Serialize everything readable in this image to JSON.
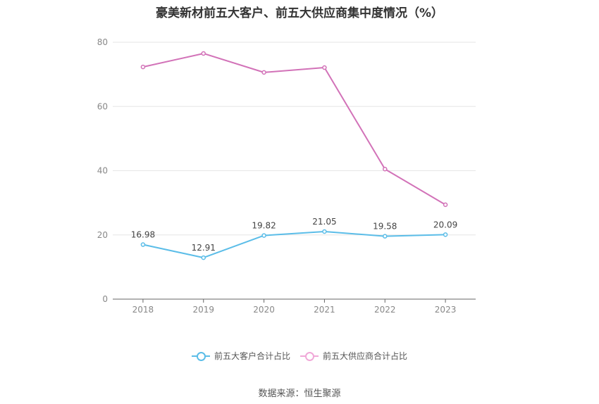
{
  "chart_data": {
    "type": "line",
    "title": "豪美新材前五大客户、前五大供应商集中度情况（%）",
    "categories": [
      "2018",
      "2019",
      "2020",
      "2021",
      "2022",
      "2023"
    ],
    "series": [
      {
        "name": "前五大客户合计占比",
        "values": [
          16.98,
          12.91,
          19.82,
          21.05,
          19.58,
          20.09
        ],
        "color": "#5bbde8",
        "show_labels": true
      },
      {
        "name": "前五大供应商合计占比",
        "values": [
          72.3,
          76.5,
          70.6,
          72.1,
          40.5,
          29.4
        ],
        "color": "#d272b8",
        "show_labels": false
      }
    ],
    "ylim": [
      0,
      80
    ],
    "yticks": [
      "0",
      "20",
      "40",
      "60",
      "80"
    ],
    "grid": true,
    "legend_position": "bottom"
  },
  "legend": {
    "item1": "前五大客户合计占比",
    "item2": "前五大供应商合计占比",
    "color1": "#5bbde8",
    "color2": "#f0a8d8"
  },
  "source": "数据来源：恒生聚源"
}
